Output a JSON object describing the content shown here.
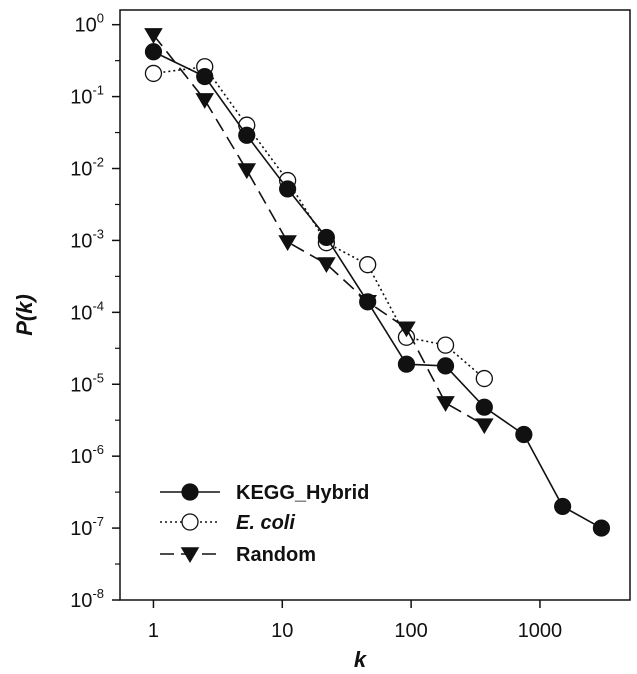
{
  "chart_data": {
    "type": "line",
    "x_scale": "log",
    "y_scale": "log",
    "xlabel": "k",
    "ylabel": "P(k)",
    "xlim": [
      0.55,
      5000
    ],
    "ylim": [
      1e-08,
      1.6
    ],
    "x_ticks": [
      {
        "value": 1,
        "label": "1"
      },
      {
        "value": 10,
        "label": "10"
      },
      {
        "value": 100,
        "label": "100"
      },
      {
        "value": 1000,
        "label": "1000"
      }
    ],
    "y_ticks": [
      {
        "value": 1,
        "base": "10",
        "exp": "0"
      },
      {
        "value": 0.1,
        "base": "10",
        "exp": "-1"
      },
      {
        "value": 0.01,
        "base": "10",
        "exp": "-2"
      },
      {
        "value": 0.001,
        "base": "10",
        "exp": "-3"
      },
      {
        "value": 0.0001,
        "base": "10",
        "exp": "-4"
      },
      {
        "value": 1e-05,
        "base": "10",
        "exp": "-5"
      },
      {
        "value": 1e-06,
        "base": "10",
        "exp": "-6"
      },
      {
        "value": 1e-07,
        "base": "10",
        "exp": "-7"
      },
      {
        "value": 1e-08,
        "base": "10",
        "exp": "-8"
      }
    ],
    "grid": false,
    "legend_position": "bottom-left",
    "series": [
      {
        "name": "KEGG_Hybrid",
        "marker": "filled-circle",
        "line": "solid",
        "x": [
          1,
          2.5,
          5.3,
          11,
          22,
          46,
          92,
          185,
          370,
          750,
          1500,
          3000
        ],
        "y": [
          0.42,
          0.19,
          0.029,
          0.0052,
          0.0011,
          0.00014,
          1.9e-05,
          1.8e-05,
          4.8e-06,
          2e-06,
          2e-07,
          1e-07
        ]
      },
      {
        "name": "E. coli",
        "marker": "open-circle",
        "line": "dotted",
        "x": [
          1,
          2.5,
          5.3,
          11,
          22,
          46,
          92,
          185,
          370
        ],
        "y": [
          0.21,
          0.26,
          0.04,
          0.0068,
          0.00093,
          0.00046,
          4.5e-05,
          3.5e-05,
          1.2e-05
        ]
      },
      {
        "name": "Random",
        "marker": "filled-triangle-down",
        "line": "dashed",
        "x": [
          1,
          2.5,
          5.3,
          11,
          22,
          46,
          92,
          185,
          370
        ],
        "y": [
          0.72,
          0.09,
          0.0095,
          0.00095,
          0.00047,
          0.00014,
          6e-05,
          5.5e-06,
          2.7e-06
        ]
      }
    ]
  }
}
